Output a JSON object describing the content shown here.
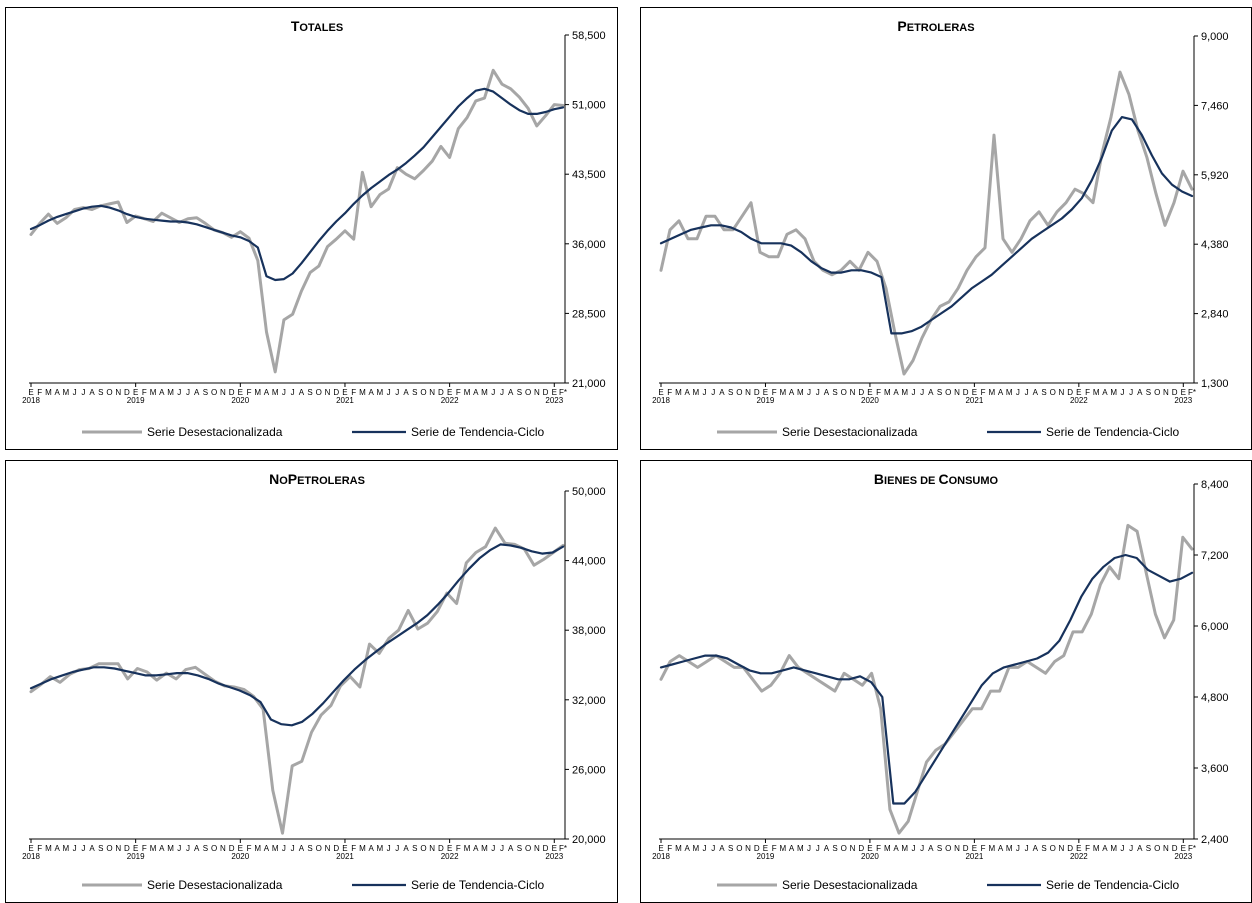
{
  "chart_data": [
    {
      "type": "line",
      "title": "Totales",
      "title_parts": {
        "first_cap": "T",
        "rest": "OTALES"
      },
      "ylim": [
        21000,
        58500
      ],
      "y_ticks": [
        "21,000",
        "28,500",
        "36,000",
        "43,500",
        "51,000",
        "58,500"
      ],
      "x_month_labels": [
        "E",
        "F",
        "M",
        "A",
        "M",
        "J",
        "J",
        "A",
        "S",
        "O",
        "N",
        "D",
        "E",
        "F",
        "M",
        "A",
        "M",
        "J",
        "J",
        "A",
        "S",
        "O",
        "N",
        "D",
        "E",
        "F",
        "M",
        "A",
        "M",
        "J",
        "J",
        "A",
        "S",
        "O",
        "N",
        "D",
        "E",
        "F",
        "M",
        "A",
        "M",
        "J",
        "J",
        "A",
        "S",
        "O",
        "N",
        "D",
        "E",
        "F",
        "M",
        "A",
        "M",
        "J",
        "J",
        "A",
        "S",
        "O",
        "N",
        "D",
        "E",
        "F*"
      ],
      "x_year_labels": [
        "2018",
        "2019",
        "2020",
        "2021",
        "2022",
        "2023"
      ],
      "grid": false,
      "series": [
        {
          "name": "Serie Desestacionalizada",
          "color": "#a6a6a6",
          "values": [
            37000,
            38200,
            39200,
            38200,
            38800,
            39700,
            39900,
            39700,
            40100,
            40300,
            40500,
            38300,
            39000,
            38700,
            38400,
            39300,
            38800,
            38300,
            38700,
            38800,
            38200,
            37500,
            37200,
            36700,
            37300,
            36600,
            34200,
            26500,
            22200,
            27800,
            28400,
            30900,
            32900,
            33600,
            35700,
            36500,
            37400,
            36500,
            43700,
            40000,
            41300,
            41900,
            44200,
            43500,
            43000,
            43900,
            44900,
            46500,
            45300,
            48400,
            49600,
            51400,
            51700,
            54700,
            53200,
            52700,
            51800,
            50600,
            48700,
            49800,
            51000,
            50900
          ]
        },
        {
          "name": "Serie de Tendencia-Ciclo",
          "color": "#17325c",
          "values": [
            37600,
            38000,
            38500,
            38900,
            39200,
            39500,
            39800,
            40000,
            40100,
            39900,
            39600,
            39200,
            38900,
            38700,
            38600,
            38500,
            38400,
            38400,
            38300,
            38100,
            37800,
            37500,
            37200,
            36900,
            36700,
            36300,
            35600,
            32500,
            32100,
            32200,
            32800,
            33900,
            35100,
            36300,
            37400,
            38400,
            39300,
            40300,
            41200,
            42000,
            42700,
            43400,
            44000,
            44700,
            45500,
            46400,
            47500,
            48600,
            49700,
            50800,
            51700,
            52500,
            52700,
            52400,
            51700,
            51000,
            50400,
            50000,
            50000,
            50200,
            50500,
            50700
          ]
        }
      ]
    },
    {
      "type": "line",
      "title": "Petroleras",
      "title_parts": {
        "first_cap": "P",
        "rest": "ETROLERAS"
      },
      "ylim": [
        1300,
        9000
      ],
      "y_ticks": [
        "1,300",
        "2,840",
        "4,380",
        "5,920",
        "7,460",
        "9,000"
      ],
      "x_month_labels": [
        "E",
        "F",
        "M",
        "A",
        "M",
        "J",
        "J",
        "A",
        "S",
        "O",
        "N",
        "D",
        "E",
        "F",
        "M",
        "A",
        "M",
        "J",
        "J",
        "A",
        "S",
        "O",
        "N",
        "D",
        "E",
        "F",
        "M",
        "A",
        "M",
        "J",
        "J",
        "A",
        "S",
        "O",
        "N",
        "D",
        "E",
        "F",
        "M",
        "A",
        "M",
        "J",
        "J",
        "A",
        "S",
        "O",
        "N",
        "D",
        "E",
        "F",
        "M",
        "A",
        "M",
        "J",
        "J",
        "A",
        "S",
        "O",
        "N",
        "D",
        "E",
        "F*"
      ],
      "x_year_labels": [
        "2018",
        "2019",
        "2020",
        "2021",
        "2022",
        "2023"
      ],
      "grid": false,
      "series": [
        {
          "name": "Serie Desestacionalizada",
          "color": "#a6a6a6",
          "values": [
            3800,
            4700,
            4900,
            4500,
            4500,
            5000,
            5000,
            4700,
            4700,
            5000,
            5300,
            4200,
            4100,
            4100,
            4600,
            4700,
            4500,
            4000,
            3800,
            3700,
            3800,
            4000,
            3800,
            4200,
            4000,
            3400,
            2400,
            1500,
            1800,
            2300,
            2700,
            3000,
            3100,
            3400,
            3800,
            4100,
            4300,
            6800,
            4500,
            4200,
            4500,
            4900,
            5100,
            4800,
            5100,
            5300,
            5600,
            5500,
            5300,
            6400,
            7200,
            8200,
            7700,
            6900,
            6300,
            5500,
            4800,
            5300,
            6000,
            5600
          ]
        },
        {
          "name": "Serie de Tendencia-Ciclo",
          "color": "#17325c",
          "values": [
            4400,
            4500,
            4600,
            4700,
            4750,
            4800,
            4800,
            4750,
            4650,
            4500,
            4400,
            4400,
            4400,
            4350,
            4200,
            4000,
            3850,
            3750,
            3750,
            3800,
            3800,
            3750,
            3650,
            2400,
            2400,
            2450,
            2550,
            2700,
            2850,
            3000,
            3200,
            3400,
            3550,
            3700,
            3900,
            4100,
            4300,
            4500,
            4650,
            4800,
            4950,
            5150,
            5400,
            5800,
            6300,
            6900,
            7200,
            7150,
            6800,
            6350,
            5950,
            5700,
            5550,
            5450
          ]
        }
      ]
    },
    {
      "type": "line",
      "title": "No Petroleras",
      "title_parts": {
        "first_cap1": "N",
        "rest1": "O",
        "first_cap2": "P",
        "rest2": "ETROLERAS"
      },
      "ylim": [
        20000,
        50000
      ],
      "y_ticks": [
        "20,000",
        "26,000",
        "32,000",
        "38,000",
        "44,000",
        "50,000"
      ],
      "x_month_labels": [
        "E",
        "F",
        "M",
        "A",
        "M",
        "J",
        "J",
        "A",
        "S",
        "O",
        "N",
        "D",
        "E",
        "F",
        "M",
        "A",
        "M",
        "J",
        "J",
        "A",
        "S",
        "O",
        "N",
        "D",
        "E",
        "F",
        "M",
        "A",
        "M",
        "J",
        "J",
        "A",
        "S",
        "O",
        "N",
        "D",
        "E",
        "F",
        "M",
        "A",
        "M",
        "J",
        "J",
        "A",
        "S",
        "O",
        "N",
        "D",
        "E",
        "F",
        "M",
        "A",
        "M",
        "J",
        "J",
        "A",
        "S",
        "O",
        "N",
        "D",
        "E",
        "F*"
      ],
      "x_year_labels": [
        "2018",
        "2019",
        "2020",
        "2021",
        "2022",
        "2023"
      ],
      "grid": false,
      "series": [
        {
          "name": "Serie Desestacionalizada",
          "color": "#a6a6a6",
          "values": [
            32700,
            33300,
            34000,
            33500,
            34200,
            34600,
            34700,
            35100,
            35100,
            35100,
            33800,
            34700,
            34400,
            33700,
            34300,
            33800,
            34600,
            34800,
            34200,
            33600,
            33200,
            33100,
            32900,
            32300,
            31200,
            24200,
            20500,
            26300,
            26700,
            29200,
            30700,
            31500,
            33200,
            34000,
            33100,
            36800,
            36000,
            37300,
            38000,
            39700,
            38100,
            38600,
            39600,
            41200,
            40300,
            43800,
            44700,
            45200,
            46800,
            45500,
            45400,
            45000,
            43600,
            44100,
            44700,
            45300
          ]
        },
        {
          "name": "Serie de Tendencia-Ciclo",
          "color": "#17325c",
          "values": [
            33000,
            33400,
            33800,
            34100,
            34400,
            34600,
            34800,
            34800,
            34700,
            34500,
            34300,
            34100,
            34100,
            34200,
            34300,
            34300,
            34100,
            33800,
            33400,
            33100,
            32800,
            32400,
            31800,
            30300,
            29900,
            29800,
            30100,
            30800,
            31700,
            32700,
            33700,
            34600,
            35400,
            36100,
            36800,
            37400,
            38000,
            38600,
            39300,
            40200,
            41200,
            42300,
            43300,
            44200,
            44900,
            45400,
            45300,
            45100,
            44800,
            44600,
            44700,
            45200
          ]
        }
      ]
    },
    {
      "type": "line",
      "title": "Bienes de Consumo",
      "title_parts": {
        "first_cap1": "B",
        "rest1": "IENES DE ",
        "first_cap2": "C",
        "rest2": "ONSUMO"
      },
      "ylim": [
        2400,
        8400
      ],
      "y_ticks": [
        "2,400",
        "3,600",
        "4,800",
        "6,000",
        "7,200",
        "8,400"
      ],
      "x_month_labels": [
        "E",
        "F",
        "M",
        "A",
        "M",
        "J",
        "J",
        "A",
        "S",
        "O",
        "N",
        "D",
        "E",
        "F",
        "M",
        "A",
        "M",
        "J",
        "J",
        "A",
        "S",
        "O",
        "N",
        "D",
        "E",
        "F",
        "M",
        "A",
        "M",
        "J",
        "J",
        "A",
        "S",
        "O",
        "N",
        "D",
        "E",
        "F",
        "M",
        "A",
        "M",
        "J",
        "J",
        "A",
        "S",
        "O",
        "N",
        "D",
        "E",
        "F",
        "M",
        "A",
        "M",
        "J",
        "J",
        "A",
        "S",
        "O",
        "N",
        "D",
        "E",
        "F*"
      ],
      "x_year_labels": [
        "2018",
        "2019",
        "2020",
        "2021",
        "2022",
        "2023"
      ],
      "grid": false,
      "series": [
        {
          "name": "Serie Desestacionalizada",
          "color": "#a6a6a6",
          "values": [
            5100,
            5400,
            5500,
            5400,
            5300,
            5400,
            5500,
            5400,
            5300,
            5300,
            5100,
            4900,
            5000,
            5200,
            5500,
            5300,
            5200,
            5100,
            5000,
            4900,
            5200,
            5100,
            5000,
            5200,
            4600,
            2900,
            2500,
            2700,
            3200,
            3700,
            3900,
            4000,
            4200,
            4400,
            4600,
            4600,
            4900,
            4900,
            5300,
            5300,
            5400,
            5300,
            5200,
            5400,
            5500,
            5900,
            5900,
            6200,
            6700,
            7000,
            6800,
            7700,
            7600,
            6900,
            6200,
            5800,
            6100,
            7500,
            7300
          ]
        },
        {
          "name": "Serie de Tendencia-Ciclo",
          "color": "#17325c",
          "values": [
            5300,
            5350,
            5400,
            5450,
            5500,
            5500,
            5450,
            5350,
            5250,
            5200,
            5200,
            5250,
            5300,
            5250,
            5200,
            5150,
            5100,
            5100,
            5150,
            5050,
            4800,
            3000,
            3000,
            3200,
            3500,
            3800,
            4100,
            4400,
            4700,
            5000,
            5200,
            5300,
            5350,
            5400,
            5450,
            5550,
            5750,
            6100,
            6500,
            6800,
            7000,
            7150,
            7200,
            7150,
            6950,
            6850,
            6750,
            6800,
            6900
          ]
        }
      ]
    }
  ],
  "legend": {
    "seasonal_label": "Serie Desestacionalizada",
    "trend_label": "Serie de Tendencia-Ciclo"
  },
  "colors": {
    "seasonal": "#a6a6a6",
    "trend": "#17325c"
  }
}
